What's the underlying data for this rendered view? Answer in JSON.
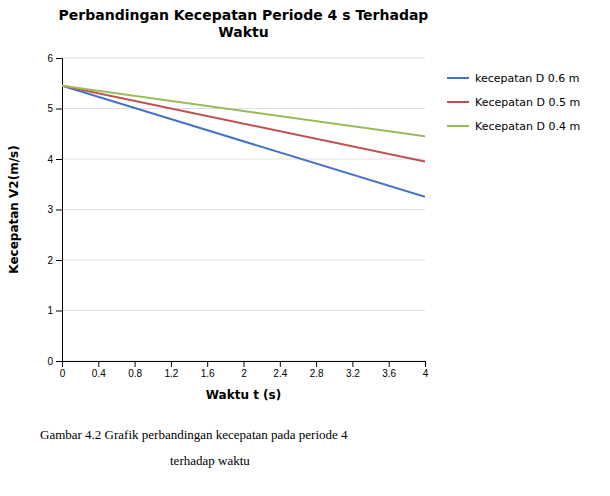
{
  "chart_data": {
    "type": "line",
    "title": "Perbandingan Kecepatan Periode 4 s Terhadap\nWaktu",
    "x_label": "Waktu t (s)",
    "y_label": "Kecepatan V2(m/s)",
    "x": [
      0,
      4
    ],
    "series": [
      {
        "name": "kecepatan D 0.6 m",
        "color": "#4472C4",
        "values": [
          5.45,
          3.25
        ]
      },
      {
        "name": "Kecepatan D 0.5 m",
        "color": "#C0504D",
        "values": [
          5.45,
          3.95
        ]
      },
      {
        "name": "Kecepatan D 0.4 m",
        "color": "#9BBB59",
        "values": [
          5.45,
          4.45
        ]
      }
    ],
    "xlim": [
      0,
      4
    ],
    "ylim": [
      0,
      6
    ],
    "xticks": [
      0,
      0.4,
      0.8,
      1.2,
      1.6,
      2,
      2.4,
      2.8,
      3.2,
      3.6,
      4
    ],
    "yticks": [
      0,
      1,
      2,
      3,
      4,
      5,
      6
    ],
    "grid": true,
    "legend": "right",
    "annotations": [
      "Gambar  4.2  Grafik perbandingan kecepatan pada periode  4",
      "terhadap waktu"
    ]
  }
}
